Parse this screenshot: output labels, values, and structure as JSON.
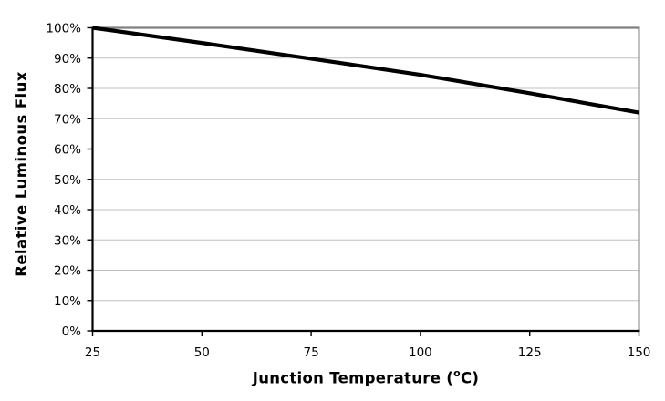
{
  "chart_data": {
    "type": "line",
    "title": "",
    "xlabel": "Junction Temperature (°C)",
    "xlabel_parts": {
      "prefix": "Junction Temperature (",
      "sup": "o",
      "suffix": "C)"
    },
    "ylabel": "Relative Luminous Flux",
    "x": [
      25,
      50,
      75,
      100,
      125,
      150
    ],
    "series": [
      {
        "name": "relative-luminous-flux",
        "values": [
          100,
          95,
          89.8,
          84.5,
          78.4,
          72
        ]
      }
    ],
    "xlim": [
      25,
      150
    ],
    "ylim": [
      0,
      100
    ],
    "x_ticks": [
      25,
      50,
      75,
      100,
      125,
      150
    ],
    "x_tick_labels": [
      "25",
      "50",
      "75",
      "100",
      "125",
      "150"
    ],
    "y_ticks": [
      0,
      10,
      20,
      30,
      40,
      50,
      60,
      70,
      80,
      90,
      100
    ],
    "y_tick_labels": [
      "0%",
      "10%",
      "20%",
      "30%",
      "40%",
      "50%",
      "60%",
      "70%",
      "80%",
      "90%",
      "100%"
    ],
    "grid": "horizontal",
    "legend": "none",
    "line_style": {
      "color": "#000000",
      "width": 4.2
    },
    "colors": {
      "background": "#ffffff",
      "gridline": "#c0c0c0",
      "plot_border": "#808080",
      "axis": "#000000",
      "tick_label": "#000000",
      "axis_title": "#000000"
    }
  }
}
